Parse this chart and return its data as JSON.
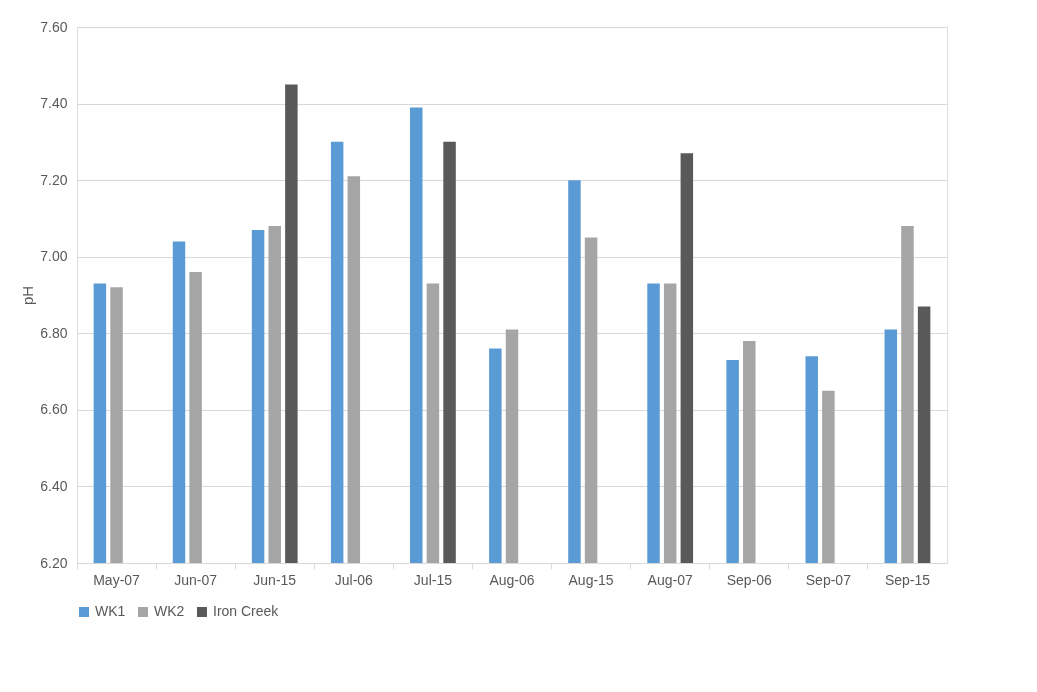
{
  "chart_data": {
    "type": "bar",
    "ylabel": "pH",
    "categories": [
      "May-07",
      "Jun-07",
      "Jun-15",
      "Jul-06",
      "Jul-15",
      "Aug-06",
      "Aug-15",
      "Aug-07",
      "Sep-06",
      "Sep-07",
      "Sep-15"
    ],
    "series": [
      {
        "name": "WK1",
        "color": "#5b9bd5",
        "values": [
          6.93,
          7.04,
          7.07,
          7.3,
          7.39,
          6.76,
          7.2,
          6.93,
          6.73,
          6.74,
          6.81
        ]
      },
      {
        "name": "WK2",
        "color": "#a5a5a5",
        "values": [
          6.92,
          6.96,
          7.08,
          7.21,
          6.93,
          6.81,
          7.05,
          6.93,
          6.78,
          6.65,
          7.08
        ]
      },
      {
        "name": "Iron Creek",
        "color": "#595959",
        "values": [
          null,
          null,
          7.45,
          null,
          7.3,
          null,
          null,
          7.27,
          null,
          null,
          6.87
        ]
      }
    ],
    "ylim": [
      6.2,
      7.6
    ],
    "yticks": [
      {
        "value": 6.2,
        "label": "6.20"
      },
      {
        "value": 6.4,
        "label": "6.40"
      },
      {
        "value": 6.6,
        "label": "6.60"
      },
      {
        "value": 6.8,
        "label": "6.80"
      },
      {
        "value": 7.0,
        "label": "7.00"
      },
      {
        "value": 7.2,
        "label": "7.20"
      },
      {
        "value": 7.4,
        "label": "7.40"
      },
      {
        "value": 7.6,
        "label": "7.60"
      }
    ],
    "grid": "y",
    "legend": "bottom"
  }
}
